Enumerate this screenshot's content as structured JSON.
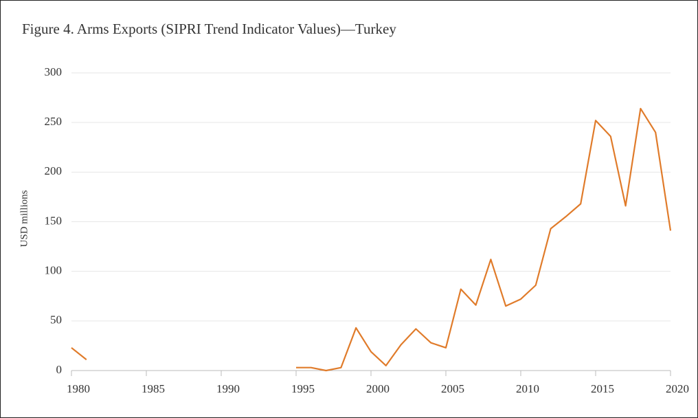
{
  "chart_data": {
    "type": "line",
    "title": "Figure 4. Arms Exports (SIPRI Trend Indicator Values)—Turkey",
    "y_label": "USD millions",
    "x": [
      1980,
      1981,
      1982,
      1983,
      1984,
      1985,
      1986,
      1987,
      1988,
      1989,
      1990,
      1991,
      1992,
      1993,
      1994,
      1995,
      1996,
      1997,
      1998,
      1999,
      2000,
      2001,
      2002,
      2003,
      2004,
      2005,
      2006,
      2007,
      2008,
      2009,
      2010,
      2011,
      2012,
      2013,
      2014,
      2015,
      2016,
      2017,
      2018,
      2019,
      2020
    ],
    "series": [
      {
        "name": "Turkey",
        "color": "#e07b2a",
        "values": [
          23,
          11,
          null,
          null,
          null,
          null,
          null,
          null,
          null,
          null,
          null,
          null,
          null,
          null,
          null,
          3,
          3,
          0,
          3,
          43,
          19,
          5,
          26,
          42,
          28,
          23,
          82,
          66,
          112,
          65,
          72,
          86,
          143,
          155,
          168,
          252,
          236,
          166,
          264,
          240,
          141
        ]
      }
    ],
    "xlim": [
      1980,
      2020
    ],
    "xticks": [
      1980,
      1985,
      1990,
      1995,
      2000,
      2005,
      2010,
      2015,
      2020
    ],
    "ylim": [
      0,
      300
    ],
    "yticks": [
      0,
      50,
      100,
      150,
      200,
      250,
      300
    ],
    "grid": true
  }
}
